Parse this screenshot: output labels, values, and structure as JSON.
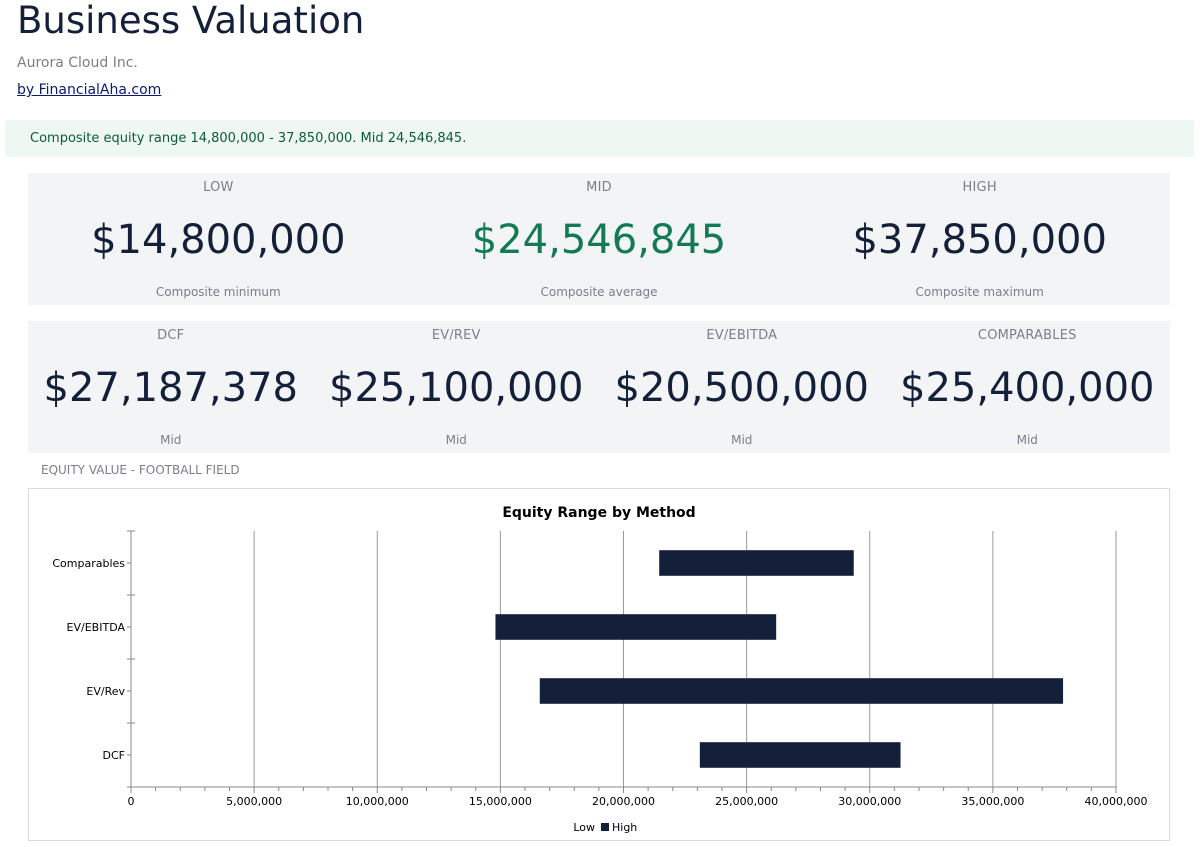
{
  "header": {
    "title": "Business Valuation",
    "company": "Aurora Cloud Inc.",
    "byline": "by FinancialAha.com"
  },
  "alert": {
    "text": "Composite equity range 14,800,000 - 37,850,000. Mid 24,546,845."
  },
  "composite": [
    {
      "label": "LOW",
      "value": "$14,800,000",
      "sub": "Composite minimum"
    },
    {
      "label": "MID",
      "value": "$24,546,845",
      "sub": "Composite average"
    },
    {
      "label": "HIGH",
      "value": "$37,850,000",
      "sub": "Composite maximum"
    }
  ],
  "methods": [
    {
      "label": "DCF",
      "value": "$27,187,378",
      "sub": "Mid"
    },
    {
      "label": "EV/REV",
      "value": "$25,100,000",
      "sub": "Mid"
    },
    {
      "label": "EV/EBITDA",
      "value": "$20,500,000",
      "sub": "Mid"
    },
    {
      "label": "COMPARABLES",
      "value": "$25,400,000",
      "sub": "Mid"
    }
  ],
  "section_label": "EQUITY VALUE - FOOTBALL FIELD",
  "colors": {
    "accent_green": "#137a55",
    "bar": "#14203a",
    "alert_bg": "#eef7f1"
  },
  "chart_data": {
    "type": "bar",
    "orientation": "horizontal-floating",
    "title": "Equity Range by Method",
    "categories": [
      "Comparables",
      "EV/EBITDA",
      "EV/Rev",
      "DCF"
    ],
    "series": [
      {
        "name": "Low",
        "values": [
          21450000,
          14800000,
          16600000,
          23100000
        ]
      },
      {
        "name": "High",
        "values": [
          29350000,
          26200000,
          37850000,
          31250000
        ]
      }
    ],
    "xlim": [
      0,
      40000000
    ],
    "xticks": [
      "0",
      "5,000,000",
      "10,000,000",
      "15,000,000",
      "20,000,000",
      "25,000,000",
      "30,000,000",
      "35,000,000",
      "40,000,000"
    ],
    "grid": true,
    "legend": "bottom-center"
  }
}
